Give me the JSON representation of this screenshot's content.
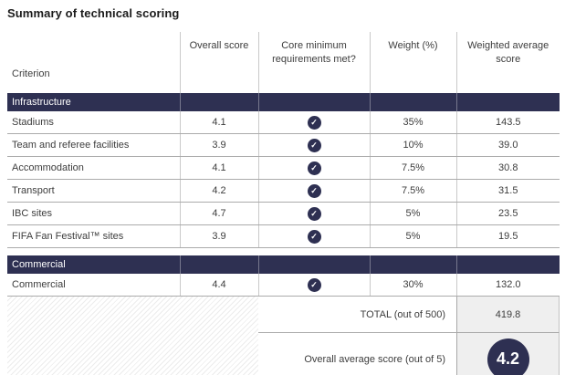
{
  "title": "Summary of technical scoring",
  "colors": {
    "navy_accent": "#2e3052",
    "summary_cell_bg": "#efefef",
    "row_border": "#ababab"
  },
  "icons": {
    "check": "✓"
  },
  "table": {
    "columns": {
      "criterion": "Criterion",
      "overall": "Overall score",
      "core": "Core minimum requirements met?",
      "weight": "Weight (%)",
      "weighted": "Weighted average score"
    },
    "sections": [
      {
        "label": "Infrastructure",
        "rows": [
          {
            "criterion": "Stadiums",
            "score": "4.1",
            "core_met": true,
            "weight": "35%",
            "weighted": "143.5"
          },
          {
            "criterion": "Team and referee facilities",
            "score": "3.9",
            "core_met": true,
            "weight": "10%",
            "weighted": "39.0"
          },
          {
            "criterion": "Accommodation",
            "score": "4.1",
            "core_met": true,
            "weight": "7.5%",
            "weighted": "30.8"
          },
          {
            "criterion": "Transport",
            "score": "4.2",
            "core_met": true,
            "weight": "7.5%",
            "weighted": "31.5"
          },
          {
            "criterion": "IBC sites",
            "score": "4.7",
            "core_met": true,
            "weight": "5%",
            "weighted": "23.5"
          },
          {
            "criterion": "FIFA Fan Festival™ sites",
            "score": "3.9",
            "core_met": true,
            "weight": "5%",
            "weighted": "19.5"
          }
        ]
      },
      {
        "label": "Commercial",
        "rows": [
          {
            "criterion": "Commercial",
            "score": "4.4",
            "core_met": true,
            "weight": "30%",
            "weighted": "132.0"
          }
        ]
      }
    ],
    "summary": {
      "total_label": "TOTAL (out of 500)",
      "total_value": "419.8",
      "overall_label": "Overall average score (out of 5)",
      "overall_value": "4.2"
    }
  }
}
